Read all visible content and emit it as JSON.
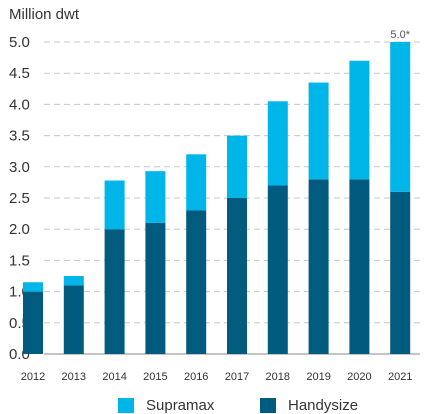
{
  "chart_data": {
    "type": "bar",
    "stacked": true,
    "title": "",
    "ylabel": "Million dwt",
    "xlabel": "",
    "categories": [
      "2012",
      "2013",
      "2014",
      "2015",
      "2016",
      "2017",
      "2018",
      "2019",
      "2020",
      "2021"
    ],
    "series": [
      {
        "name": "Handysize",
        "values": [
          1.0,
          1.1,
          2.0,
          2.1,
          2.3,
          2.5,
          2.7,
          2.8,
          2.8,
          2.6
        ]
      },
      {
        "name": "Supramax",
        "values": [
          0.15,
          0.15,
          0.78,
          0.83,
          0.9,
          1.0,
          1.35,
          1.55,
          1.9,
          2.4
        ]
      }
    ],
    "ylim": [
      0,
      5.0
    ],
    "yticks": [
      "0.0",
      "0.5",
      "1.0",
      "1.5",
      "2.0",
      "2.5",
      "3.0",
      "3.5",
      "4.0",
      "4.5",
      "5.0"
    ],
    "annotations": [
      {
        "category": "2021",
        "text": "5.0*"
      }
    ],
    "grid": true,
    "legend_position": "bottom",
    "colors": {
      "Handysize": "#005b7f",
      "Supramax": "#00b5e8",
      "grid": "#c8c8c8",
      "axis": "#333333"
    }
  }
}
